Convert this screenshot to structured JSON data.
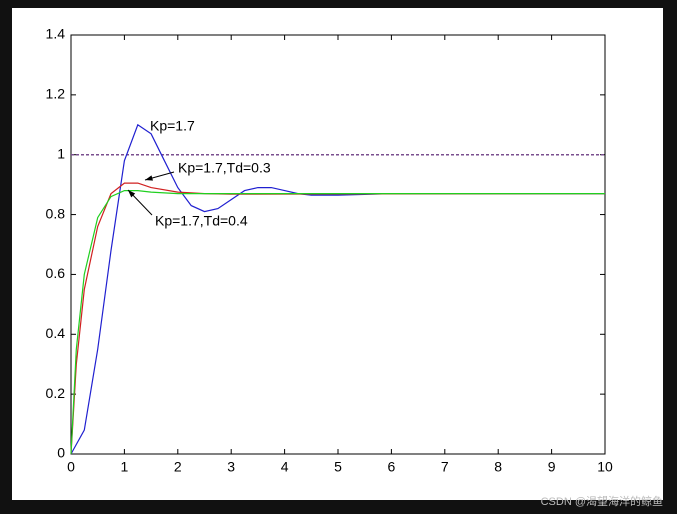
{
  "chart_data": {
    "type": "line",
    "xlim": [
      0,
      10
    ],
    "xticks": [
      0,
      1,
      2,
      3,
      4,
      5,
      6,
      7,
      8,
      9,
      10
    ],
    "ylim": [
      0,
      1.4
    ],
    "yticks": [
      0,
      0.2,
      0.4,
      0.6,
      0.8,
      1,
      1.2,
      1.4
    ],
    "reference": {
      "value": 1,
      "color": "#7a4f8f"
    },
    "series": [
      {
        "name": "Kp=1.7",
        "color": "#2020d0",
        "x": [
          0,
          0.25,
          0.5,
          0.75,
          1,
          1.25,
          1.5,
          1.75,
          2,
          2.25,
          2.5,
          2.75,
          3,
          3.25,
          3.5,
          3.75,
          4,
          4.25,
          4.5,
          5,
          6,
          7,
          8,
          10
        ],
        "values": [
          0,
          0.08,
          0.35,
          0.68,
          0.98,
          1.1,
          1.07,
          0.98,
          0.89,
          0.83,
          0.81,
          0.82,
          0.85,
          0.88,
          0.89,
          0.89,
          0.88,
          0.87,
          0.865,
          0.865,
          0.87,
          0.87,
          0.87,
          0.87
        ]
      },
      {
        "name": "Kp=1.7,Td=0.3",
        "color": "#d02020",
        "x": [
          0,
          0.1,
          0.25,
          0.5,
          0.75,
          1,
          1.25,
          1.5,
          2,
          2.5,
          3,
          10
        ],
        "values": [
          0,
          0.3,
          0.55,
          0.76,
          0.87,
          0.905,
          0.905,
          0.89,
          0.875,
          0.87,
          0.868,
          0.87
        ]
      },
      {
        "name": "Kp=1.7,Td=0.4",
        "color": "#20d020",
        "x": [
          0,
          0.1,
          0.25,
          0.5,
          0.75,
          1,
          1.25,
          1.5,
          2,
          10
        ],
        "values": [
          0,
          0.35,
          0.6,
          0.79,
          0.86,
          0.88,
          0.88,
          0.875,
          0.87,
          0.87
        ]
      }
    ]
  },
  "watermark": "CSDN @渴望海洋的鲸鱼"
}
